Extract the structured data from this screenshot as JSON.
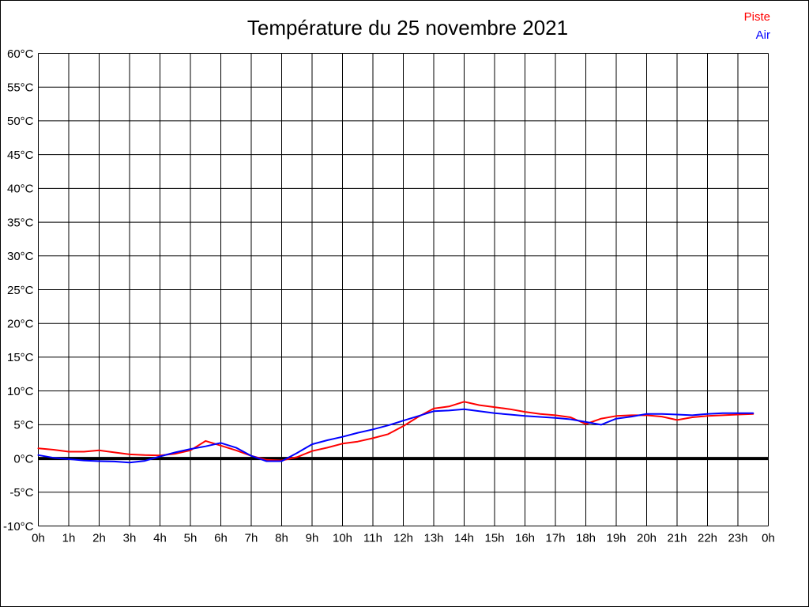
{
  "page": {
    "background_color": "#ffffff",
    "border_color": "#000000"
  },
  "chart_data": {
    "type": "line",
    "title": "Température du 25 novembre 2021",
    "title_color": "#000000",
    "xlabel": "",
    "ylabel": "",
    "xlim": [
      0,
      24
    ],
    "ylim": [
      -10,
      60
    ],
    "grid": true,
    "grid_color": "#000000",
    "x_tick_labels": [
      "0h",
      "1h",
      "2h",
      "3h",
      "4h",
      "5h",
      "6h",
      "7h",
      "8h",
      "9h",
      "10h",
      "11h",
      "12h",
      "13h",
      "14h",
      "15h",
      "16h",
      "17h",
      "18h",
      "19h",
      "20h",
      "21h",
      "22h",
      "23h",
      "0h"
    ],
    "y_tick_labels": [
      "-10°C",
      "-5°C",
      "0°C",
      "5°C",
      "10°C",
      "15°C",
      "20°C",
      "25°C",
      "30°C",
      "35°C",
      "40°C",
      "45°C",
      "50°C",
      "55°C",
      "60°C"
    ],
    "zero_line": {
      "value": 0,
      "color": "#000000",
      "width": 4
    },
    "legend": {
      "position": "top-right",
      "entries": [
        {
          "label": "Piste",
          "color": "#ff0000"
        },
        {
          "label": "Air",
          "color": "#0000ff"
        }
      ]
    },
    "x": [
      0,
      0.5,
      1,
      1.5,
      2,
      2.5,
      3,
      3.5,
      4,
      4.5,
      5,
      5.5,
      6,
      6.5,
      7,
      7.5,
      8,
      8.5,
      9,
      9.5,
      10,
      10.5,
      11,
      11.5,
      12,
      12.5,
      13,
      13.5,
      14,
      14.5,
      15,
      15.5,
      16,
      16.5,
      17,
      17.5,
      18,
      18.5,
      19,
      19.5,
      20,
      20.5,
      21,
      21.5,
      22,
      22.5,
      23,
      23.5
    ],
    "series": [
      {
        "name": "Piste",
        "color": "#ff0000",
        "values": [
          1.5,
          1.3,
          1.0,
          1.0,
          1.2,
          0.9,
          0.6,
          0.5,
          0.45,
          0.7,
          1.2,
          2.6,
          1.9,
          1.2,
          0.4,
          -0.2,
          -0.3,
          0.2,
          1.1,
          1.6,
          2.2,
          2.5,
          3.0,
          3.6,
          4.8,
          6.2,
          7.4,
          7.7,
          8.4,
          7.9,
          7.6,
          7.3,
          6.9,
          6.6,
          6.4,
          6.1,
          5.1,
          5.9,
          6.3,
          6.4,
          6.4,
          6.2,
          5.7,
          6.1,
          6.3,
          6.4,
          6.5,
          6.6
        ]
      },
      {
        "name": "Air",
        "color": "#0000ff",
        "values": [
          0.5,
          0.1,
          -0.1,
          -0.3,
          -0.4,
          -0.45,
          -0.6,
          -0.35,
          0.3,
          0.9,
          1.4,
          1.8,
          2.3,
          1.6,
          0.4,
          -0.4,
          -0.4,
          0.8,
          2.1,
          2.7,
          3.2,
          3.8,
          4.3,
          4.9,
          5.6,
          6.3,
          7.0,
          7.1,
          7.3,
          7.0,
          6.7,
          6.5,
          6.3,
          6.15,
          6.0,
          5.8,
          5.4,
          5.0,
          5.9,
          6.2,
          6.6,
          6.6,
          6.5,
          6.4,
          6.6,
          6.7,
          6.7,
          6.7
        ]
      }
    ]
  }
}
